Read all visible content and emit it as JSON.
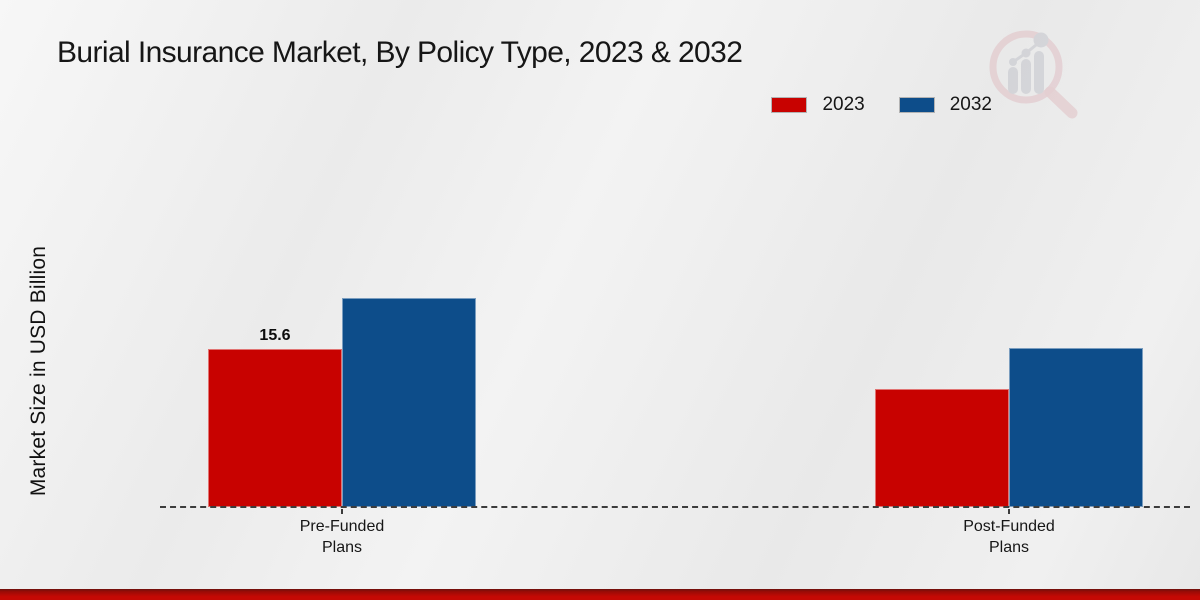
{
  "chart_data": {
    "type": "bar",
    "title": "Burial Insurance Market, By Policy Type, 2023 & 2032",
    "ylabel": "Market Size in USD Billion",
    "xlabel": "",
    "categories": [
      "Pre-Funded Plans",
      "Post-Funded Plans"
    ],
    "series": [
      {
        "name": "2023",
        "color": "#c80200",
        "values": [
          15.6,
          11.7
        ],
        "data_labels": [
          "15.6",
          ""
        ]
      },
      {
        "name": "2032",
        "color": "#0d4d8a",
        "values": [
          20.7,
          15.7
        ],
        "data_labels": [
          "",
          ""
        ]
      }
    ],
    "ylim": [
      0,
      35.3
    ],
    "grid": false,
    "legend_position": "top-right",
    "baseline_style": "dashed"
  },
  "colors": {
    "background": "#ededed",
    "title_text": "#161616",
    "axis_line": "#3c3c3c",
    "bottom_band": "#c50904",
    "watermark_pink": "#dcb3b8",
    "watermark_gray": "#bfc1c9"
  },
  "watermark": {
    "icon": "magnifier-growth-chart-logo"
  }
}
